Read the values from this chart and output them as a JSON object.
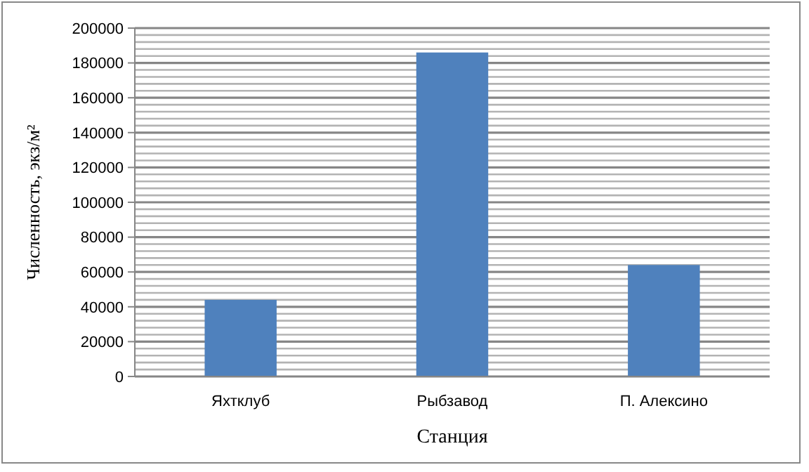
{
  "chart_data": {
    "type": "bar",
    "xlabel": "Станция",
    "ylabel": "Численность, экз/м²",
    "categories": [
      "Яхтклуб",
      "Рыбзавод",
      "П. Алексино"
    ],
    "values": [
      44000,
      186000,
      64000
    ],
    "color": "#4f81bd",
    "ylim": [
      0,
      200000
    ],
    "yticks": [
      0,
      {
        "value": 4000,
        "label": null
      },
      {
        "value": 8000,
        "label": null
      },
      {
        "value": 12000,
        "label": null
      },
      {
        "value": 16000,
        "label": null
      },
      20000,
      {
        "value": 24000,
        "label": null
      },
      {
        "value": 28000,
        "label": null
      },
      {
        "value": 32000,
        "label": null
      },
      {
        "value": 36000,
        "label": null
      },
      40000,
      {
        "value": 44000,
        "label": null
      },
      {
        "value": 48000,
        "label": null
      },
      {
        "value": 52000,
        "label": null
      },
      {
        "value": 56000,
        "label": null
      },
      60000,
      {
        "value": 64000,
        "label": null
      },
      {
        "value": 68000,
        "label": null
      },
      {
        "value": 72000,
        "label": null
      },
      {
        "value": 76000,
        "label": null
      },
      80000,
      {
        "value": 84000,
        "label": null
      },
      {
        "value": 88000,
        "label": null
      },
      {
        "value": 92000,
        "label": null
      },
      {
        "value": 96000,
        "label": null
      },
      100000,
      {
        "value": 104000,
        "label": null
      },
      {
        "value": 108000,
        "label": null
      },
      {
        "value": 112000,
        "label": null
      },
      {
        "value": 116000,
        "label": null
      },
      120000,
      {
        "value": 124000,
        "label": null
      },
      {
        "value": 128000,
        "label": null
      },
      {
        "value": 132000,
        "label": null
      },
      {
        "value": 136000,
        "label": null
      },
      140000,
      {
        "value": 144000,
        "label": null
      },
      {
        "value": 148000,
        "label": null
      },
      {
        "value": 152000,
        "label": null
      },
      {
        "value": 156000,
        "label": null
      },
      160000,
      {
        "value": 164000,
        "label": null
      },
      {
        "value": 168000,
        "label": null
      },
      {
        "value": 172000,
        "label": null
      },
      {
        "value": 176000,
        "label": null
      },
      180000,
      {
        "value": 184000,
        "label": null
      },
      {
        "value": 188000,
        "label": null
      },
      {
        "value": 192000,
        "label": null
      },
      {
        "value": 196000,
        "label": null
      },
      200000
    ],
    "grid": "y"
  }
}
